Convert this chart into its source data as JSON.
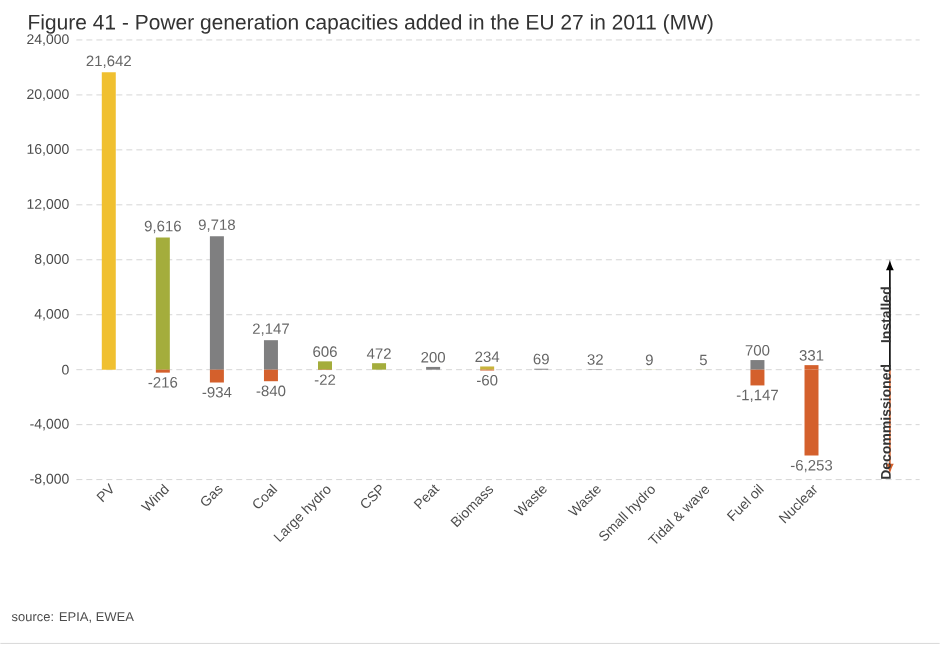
{
  "chart_data": {
    "type": "bar",
    "title": "Figure 41 - Power generation capacities added in the EU 27 in 2011 (MW)",
    "categories": [
      "PV",
      "Wind",
      "Gas",
      "Coal",
      "Large hydro",
      "CSP",
      "Peat",
      "Biomass",
      "Waste",
      "Waste",
      "Small hydro",
      "Tidal & wave",
      "Fuel oil",
      "Nuclear"
    ],
    "series": [
      {
        "colors": [
          "#f0c030",
          "#a4ad3c",
          "#7f7f80",
          "#7f7f80",
          "#a4ad3c",
          "#a4ad3c",
          "#7f7f80",
          "#c8b43c",
          "#7f7f80",
          "#7f7f80",
          "#a4ad3c",
          "#a4ad3c",
          "#7f7f80",
          "#d4602c"
        ],
        "values": [
          21642,
          9616,
          9718,
          2147,
          606,
          472,
          200,
          234,
          69,
          32,
          9,
          5,
          700,
          331
        ],
        "value_labels": [
          "21,642",
          "9,616",
          "9,718",
          "2,147",
          "606",
          "472",
          "200",
          "234",
          "69",
          "32",
          "9",
          "5",
          "700",
          "331"
        ]
      },
      {
        "color": "#d4602c",
        "values": [
          null,
          -216,
          -934,
          -840,
          -22,
          null,
          null,
          -60,
          null,
          null,
          null,
          null,
          -1147,
          -6253
        ],
        "value_labels": [
          null,
          "-216",
          "-934",
          "-840",
          "-22",
          null,
          null,
          "-60",
          null,
          null,
          null,
          null,
          "-1,147",
          "-6,253"
        ]
      }
    ],
    "ylim": [
      -8000,
      24000
    ],
    "yticks": [
      {
        "value": -8000,
        "label": "-8,000"
      },
      {
        "value": -4000,
        "label": "-4,000"
      },
      {
        "value": 0,
        "label": "0"
      },
      {
        "value": 4000,
        "label": "4,000"
      },
      {
        "value": 8000,
        "label": "8,000"
      },
      {
        "value": 12000,
        "label": "12,000"
      },
      {
        "value": 16000,
        "label": "16,000"
      },
      {
        "value": 20000,
        "label": "20,000"
      },
      {
        "value": 24000,
        "label": "24,000"
      }
    ],
    "grid": "y",
    "annotations": [
      "Installed",
      "Decommissioned",
      "source: EPIA, EWEA"
    ]
  }
}
